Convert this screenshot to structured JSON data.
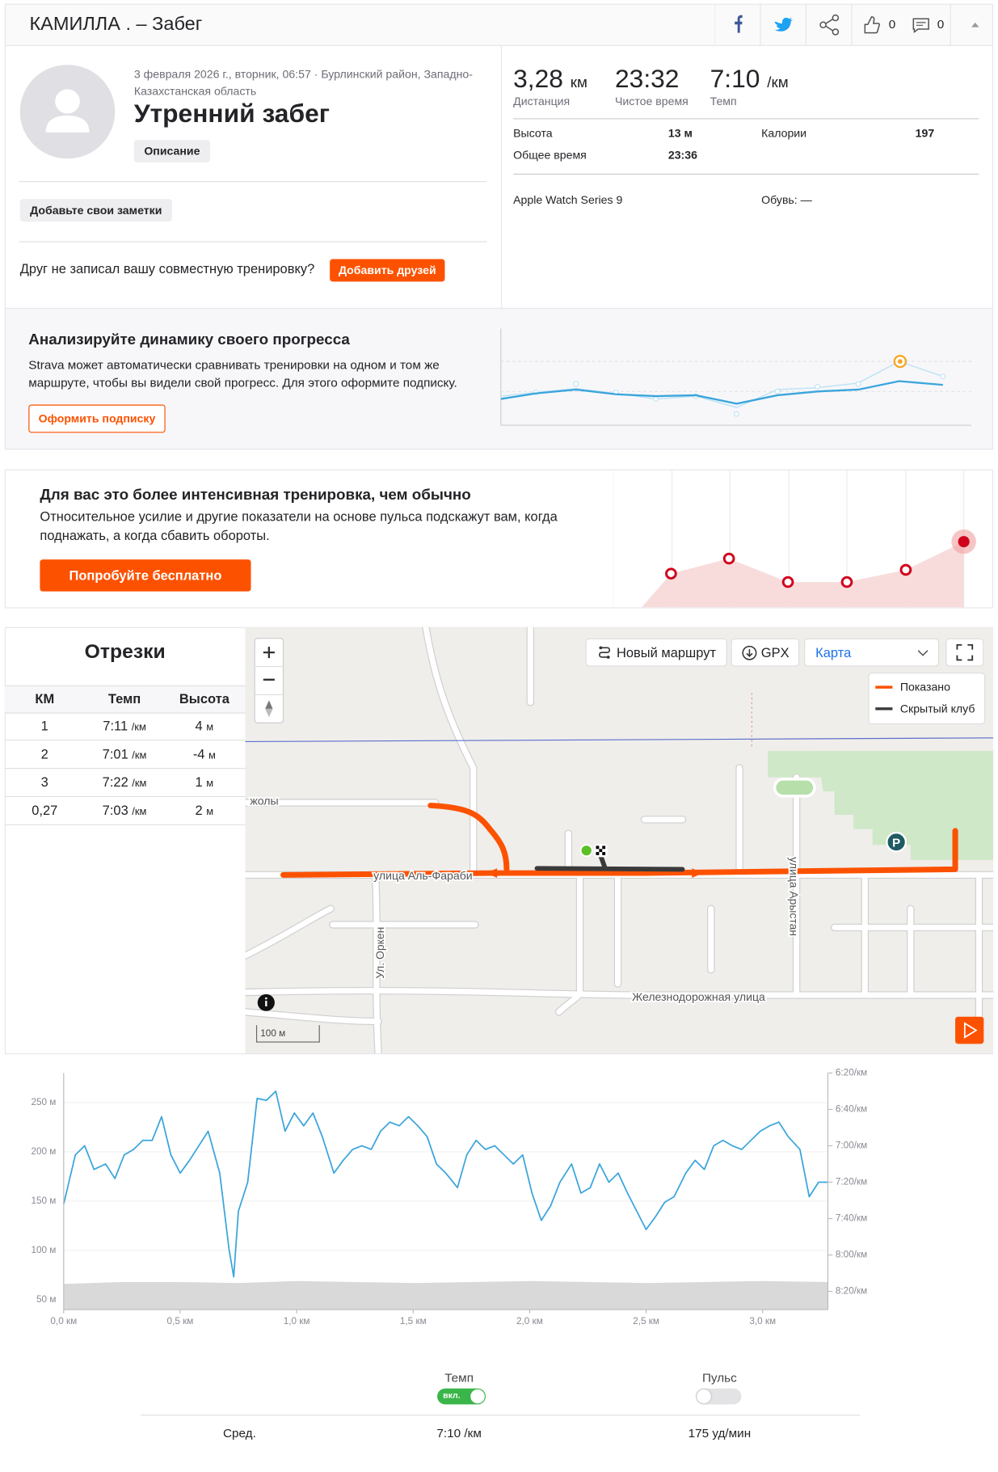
{
  "header": {
    "title": "КАМИЛЛА . – Забег",
    "kudos_count": "0",
    "comments_count": "0"
  },
  "activity": {
    "date_location": "3 февраля 2026 г., вторник, 06:57 · Бурлинский район, Западно-Казахстанская область",
    "name": "Утренний забег",
    "description_button": "Описание",
    "notes_button": "Добавьте свои заметки",
    "friends_prompt": "Друг не записал вашу совместную тренировку?",
    "add_friends_button": "Добавить друзей"
  },
  "stats": {
    "primary": [
      {
        "value": "3,28",
        "unit": "км",
        "label": "Дистанция"
      },
      {
        "value": "23:32",
        "label": "Чистое время"
      },
      {
        "value": "7:10",
        "unit": "/км",
        "label": "Темп"
      }
    ],
    "details": [
      {
        "label": "Высота",
        "value": "13 м"
      },
      {
        "label": "Калории",
        "value": "197"
      },
      {
        "label": "Общее время",
        "value": "23:36"
      }
    ],
    "device": "Apple Watch Series 9",
    "shoes": "Обувь: —"
  },
  "promo_progress": {
    "title": "Анализируйте динамику своего прогресса",
    "text": "Strava может автоматически сравнивать тренировки на одном и том же маршруте, чтобы вы видели свой прогресс. Для этого оформите подписку.",
    "button": "Оформить подписку"
  },
  "promo_effort": {
    "title": "Для вас это более интенсивная тренировка, чем обычно",
    "text": "Относительное усилие и другие показатели на основе пульса подскажут вам, когда поднажать, а когда сбавить обороты.",
    "button": "Попробуйте бесплатно"
  },
  "splits": {
    "title": "Отрезки",
    "columns": [
      "КМ",
      "Темп",
      "Высота"
    ],
    "rows": [
      {
        "km": "1",
        "pace": "7:11",
        "pace_unit": "/км",
        "elevation": "4",
        "elevation_unit": "м"
      },
      {
        "km": "2",
        "pace": "7:01",
        "pace_unit": "/км",
        "elevation": "-4",
        "elevation_unit": "м"
      },
      {
        "km": "3",
        "pace": "7:22",
        "pace_unit": "/км",
        "elevation": "1",
        "elevation_unit": "м"
      },
      {
        "km": "0,27",
        "pace": "7:03",
        "pace_unit": "/км",
        "elevation": "2",
        "elevation_unit": "м"
      }
    ]
  },
  "map": {
    "new_route_button": "Новый маршрут",
    "gpx_button": "GPX",
    "map_type": "Карта",
    "legend": [
      "Показано",
      "Скрытый клуб"
    ],
    "streets": [
      "улица Аль-Фараби",
      "Ул. Оркен",
      "улица Арыстан",
      "Железнодорожная улица",
      "жолы"
    ],
    "poi": "P",
    "scale": "100 м"
  },
  "chart_data": {
    "type": "line",
    "x": [
      0.0,
      0.05,
      0.09,
      0.13,
      0.18,
      0.22,
      0.26,
      0.3,
      0.34,
      0.38,
      0.42,
      0.46,
      0.5,
      0.54,
      0.58,
      0.62,
      0.67,
      0.71,
      0.73,
      0.75,
      0.79,
      0.83,
      0.87,
      0.91,
      0.95,
      0.99,
      1.03,
      1.07,
      1.11,
      1.16,
      1.2,
      1.24,
      1.28,
      1.32,
      1.36,
      1.4,
      1.44,
      1.48,
      1.52,
      1.56,
      1.6,
      1.64,
      1.69,
      1.73,
      1.77,
      1.81,
      1.85,
      1.89,
      1.93,
      1.97,
      2.01,
      2.05,
      2.09,
      2.13,
      2.18,
      2.22,
      2.26,
      2.3,
      2.34,
      2.38,
      2.42,
      2.46,
      2.5,
      2.54,
      2.58,
      2.62,
      2.67,
      2.71,
      2.75,
      2.79,
      2.83,
      2.87,
      2.91,
      2.95,
      2.99,
      3.03,
      3.07,
      3.11,
      3.16,
      3.2,
      3.24,
      3.28
    ],
    "xlim": [
      0,
      3.28
    ],
    "xticks": [
      {
        "value": 0,
        "label": "0,0 км"
      },
      {
        "value": 0.5,
        "label": "0,5 км"
      },
      {
        "value": 1,
        "label": "1,0 км"
      },
      {
        "value": 1.5,
        "label": "1,5 км"
      },
      {
        "value": 2,
        "label": "2,0 км"
      },
      {
        "value": 2.5,
        "label": "2,5 км"
      },
      {
        "value": 3,
        "label": "3,0 км"
      }
    ],
    "ylim": [
      40,
      280
    ],
    "yticks": [
      {
        "value": 50,
        "label": "50 м"
      },
      {
        "value": 100,
        "label": "100 м"
      },
      {
        "value": 150,
        "label": "150 м"
      },
      {
        "value": 200,
        "label": "200 м"
      },
      {
        "value": 250,
        "label": "250 м"
      }
    ],
    "y2lim": [
      510,
      380
    ],
    "y2ticks": [
      {
        "value": 380,
        "label": "6:20/км"
      },
      {
        "value": 400,
        "label": "6:40/км"
      },
      {
        "value": 420,
        "label": "7:00/км"
      },
      {
        "value": 440,
        "label": "7:20/км"
      },
      {
        "value": 460,
        "label": "7:40/км"
      },
      {
        "value": 480,
        "label": "8:00/км"
      },
      {
        "value": 500,
        "label": "8:20/км"
      }
    ],
    "grid": true,
    "series": [
      {
        "name": "Темп",
        "color": "#3ba5dc",
        "axis": "y2",
        "values": [
          452,
          425,
          420,
          433,
          430,
          438,
          425,
          422,
          417,
          417,
          404,
          425,
          435,
          428,
          420,
          412,
          435,
          477,
          492,
          456,
          440,
          394,
          395,
          390,
          412,
          402,
          409,
          402,
          415,
          435,
          428,
          422,
          420,
          422,
          412,
          407,
          409,
          404,
          409,
          415,
          430,
          435,
          443,
          425,
          417,
          422,
          420,
          425,
          430,
          425,
          446,
          461,
          453,
          440,
          430,
          446,
          443,
          430,
          440,
          435,
          446,
          456,
          466,
          459,
          451,
          448,
          435,
          428,
          433,
          420,
          417,
          420,
          422,
          417,
          412,
          409,
          407,
          415,
          422,
          448,
          440,
          440
        ]
      },
      {
        "type": "area",
        "color": "#d9d9d9",
        "x": [
          0,
          0.25,
          0.5,
          0.75,
          1,
          1.25,
          1.5,
          1.75,
          2,
          2.25,
          2.5,
          2.75,
          3,
          3.28
        ],
        "values": [
          66,
          68,
          68,
          67,
          69,
          68,
          67,
          68,
          69,
          68,
          67,
          68,
          69,
          68
        ]
      }
    ]
  },
  "chart_footer": {
    "toggle_on": "вкл.",
    "heart_rate": "Пульс",
    "average_label": "Сред.",
    "average_pace": "7:10 /км",
    "average_heart_rate": "175 уд/мин"
  }
}
